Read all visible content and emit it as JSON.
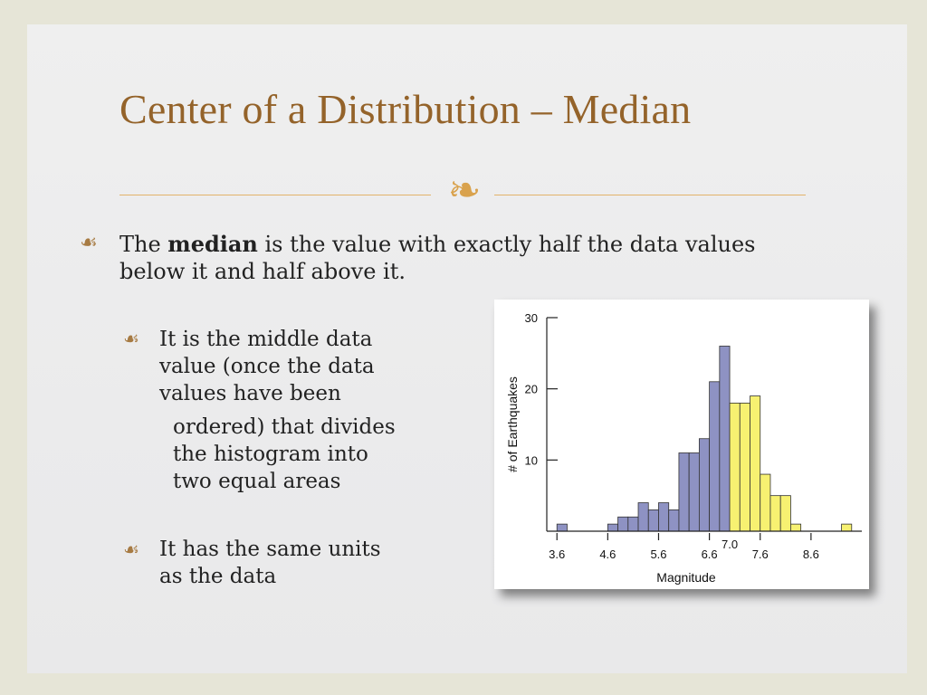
{
  "slide": {
    "title": "Center of a Distribution – Median",
    "ornament": "❧",
    "bullet_glyph": "☙",
    "bullet1": {
      "pre": "The ",
      "bold": "median",
      "post": " is the value with exactly half the data values",
      "line2": "below it and half above it."
    },
    "sub1": {
      "lines": [
        "It is the middle data",
        "value (once the data",
        "values have been"
      ],
      "continued": [
        "ordered) that divides",
        "the histogram into",
        "two equal areas"
      ]
    },
    "sub2": {
      "lines": [
        "It has the same units",
        "as the data"
      ]
    }
  },
  "chart_data": {
    "type": "bar",
    "xlabel": "Magnitude",
    "ylabel": "# of Earthquakes",
    "ylim": [
      0,
      30
    ],
    "yticks": [
      10,
      20,
      30
    ],
    "xticks": [
      "3.6",
      "4.6",
      "5.6",
      "6.6",
      "7.6",
      "8.6"
    ],
    "xtick_values": [
      3.6,
      4.6,
      5.6,
      6.6,
      7.6,
      8.6
    ],
    "median_label": "7.0",
    "median": 7.0,
    "bin_width": 0.2,
    "bins_start": [
      3.6,
      4.6,
      4.8,
      5.0,
      5.2,
      5.4,
      5.6,
      5.8,
      6.0,
      6.2,
      6.4,
      6.6,
      6.8,
      7.0,
      7.2,
      7.4,
      7.6,
      7.8,
      8.0,
      8.2,
      9.2
    ],
    "values": [
      1,
      1,
      2,
      2,
      4,
      3,
      4,
      3,
      11,
      11,
      13,
      21,
      26,
      18,
      18,
      19,
      8,
      5,
      5,
      1,
      1
    ],
    "colors": {
      "below": "#8e92c3",
      "above": "#f7f171",
      "edge": "#333333"
    },
    "grid": false
  }
}
